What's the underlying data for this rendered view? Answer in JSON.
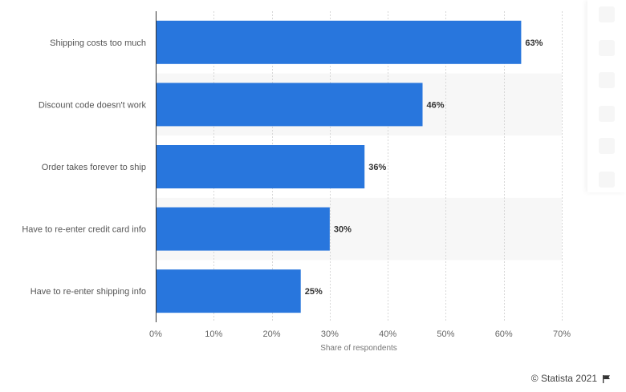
{
  "chart_data": {
    "type": "bar",
    "orientation": "horizontal",
    "categories": [
      "Shipping costs too much",
      "Discount code doesn't work",
      "Order takes forever to ship",
      "Have to re-enter credit card info",
      "Have to re-enter shipping info"
    ],
    "values": [
      63,
      46,
      36,
      30,
      25
    ],
    "value_labels": [
      "63%",
      "46%",
      "36%",
      "30%",
      "25%"
    ],
    "xlabel": "Share of respondents",
    "xlim": [
      0,
      70
    ],
    "xticks": [
      0,
      10,
      20,
      30,
      40,
      50,
      60,
      70
    ],
    "xtick_labels": [
      "0%",
      "10%",
      "20%",
      "30%",
      "40%",
      "50%",
      "60%",
      "70%"
    ],
    "grid": true,
    "bar_color": "#2876dd"
  },
  "footer": {
    "credit": "© Statista 2021",
    "flag_icon": "flag-icon"
  },
  "side_panel": {
    "icons": [
      "bell-icon",
      "star-icon",
      "settings-icon",
      "share-icon",
      "quote-icon",
      "print-icon"
    ]
  }
}
